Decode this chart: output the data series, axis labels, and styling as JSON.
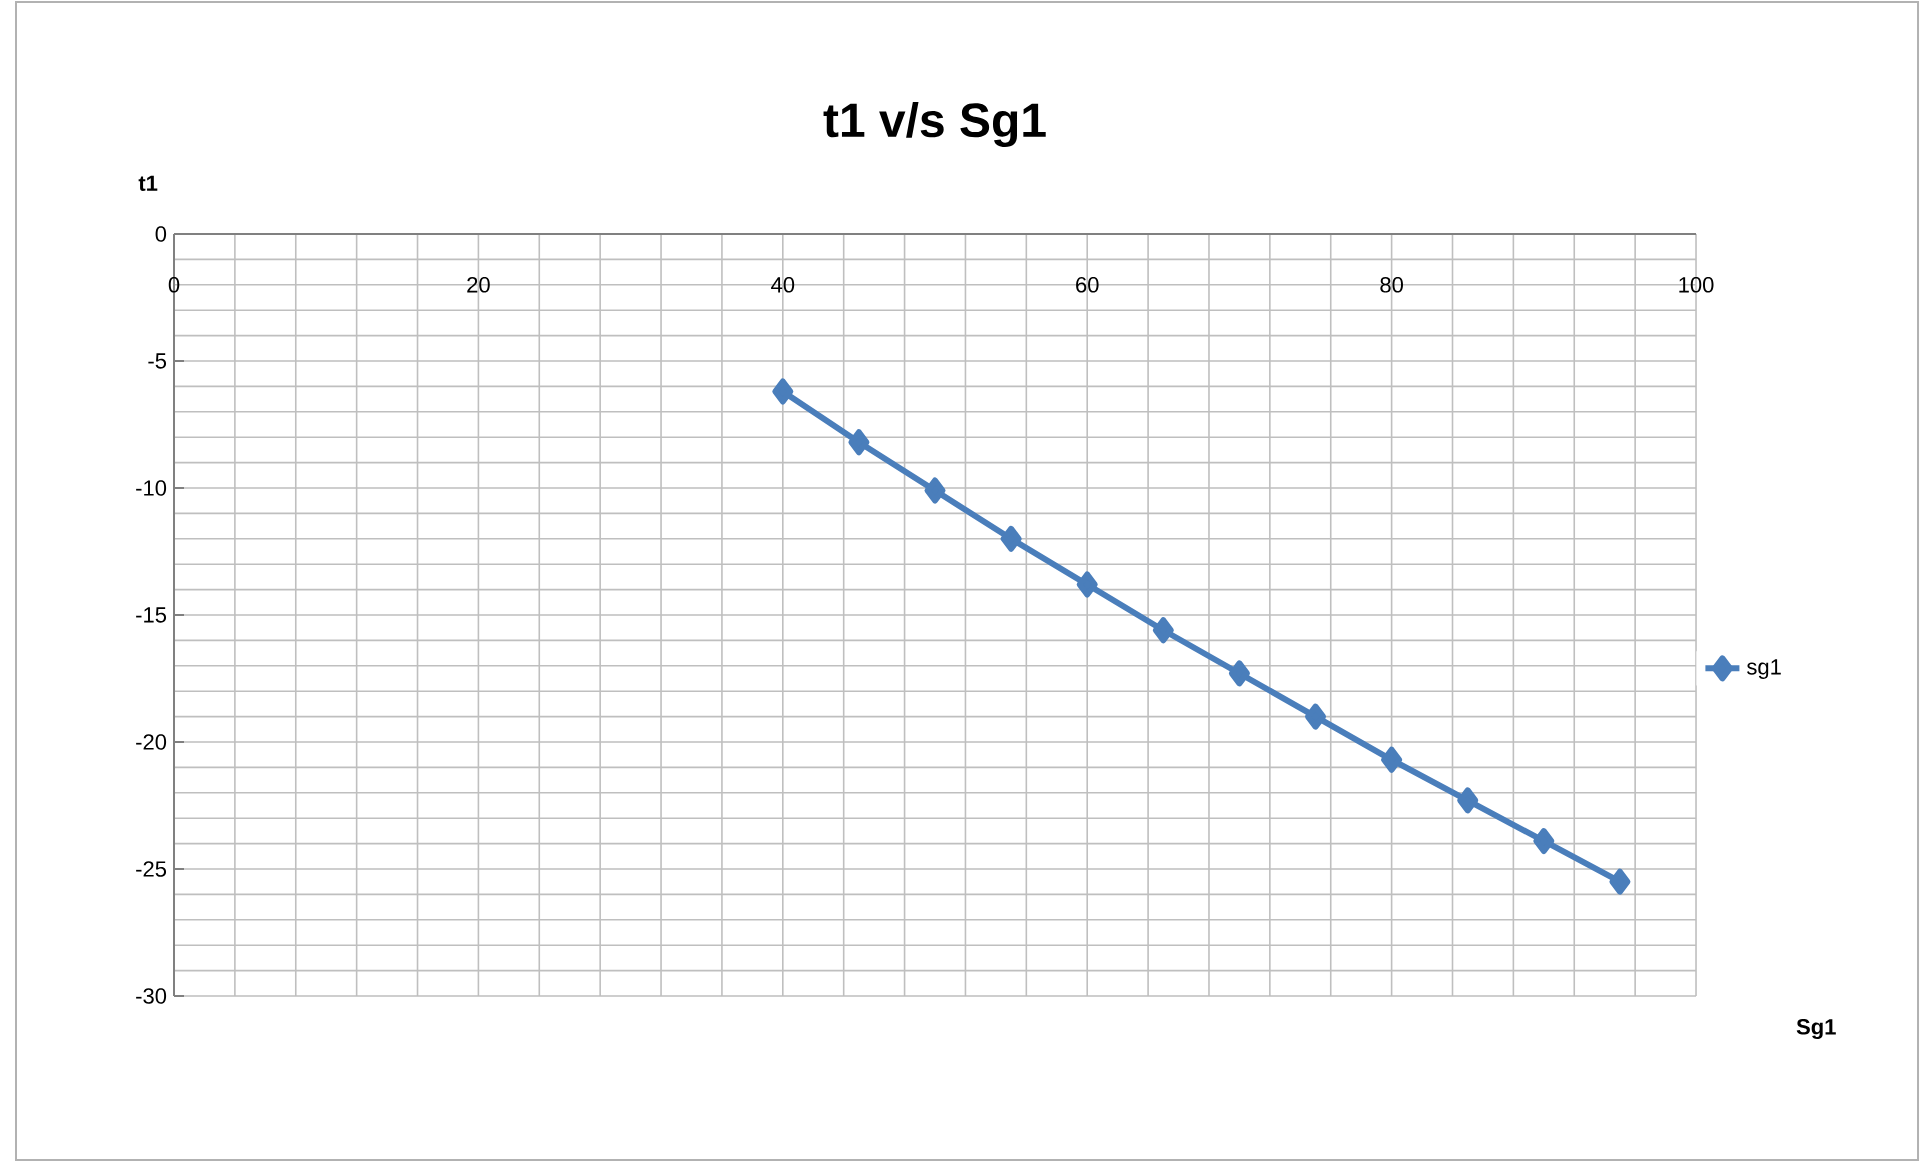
{
  "chart_data": {
    "type": "line",
    "title": "t1 v/s Sg1",
    "xlabel": "Sg1",
    "ylabel": "t1",
    "x": [
      40,
      45,
      50,
      55,
      60,
      65,
      70,
      75,
      80,
      85,
      90,
      95
    ],
    "series": [
      {
        "name": "sg1",
        "color": "#4a7ebb",
        "values": [
          -6.2,
          -8.2,
          -10.1,
          -12.0,
          -13.8,
          -15.6,
          -17.3,
          -19.0,
          -20.7,
          -22.3,
          -23.9,
          -25.5
        ]
      }
    ],
    "xlim": [
      0,
      100
    ],
    "ylim": [
      -30,
      0
    ],
    "xticks": [
      0,
      20,
      40,
      60,
      80,
      100
    ],
    "yticks": [
      -30,
      -25,
      -20,
      -15,
      -10,
      -5,
      0
    ],
    "grid": true,
    "legend": "right",
    "marker": "diamond",
    "line_style": "solid"
  }
}
